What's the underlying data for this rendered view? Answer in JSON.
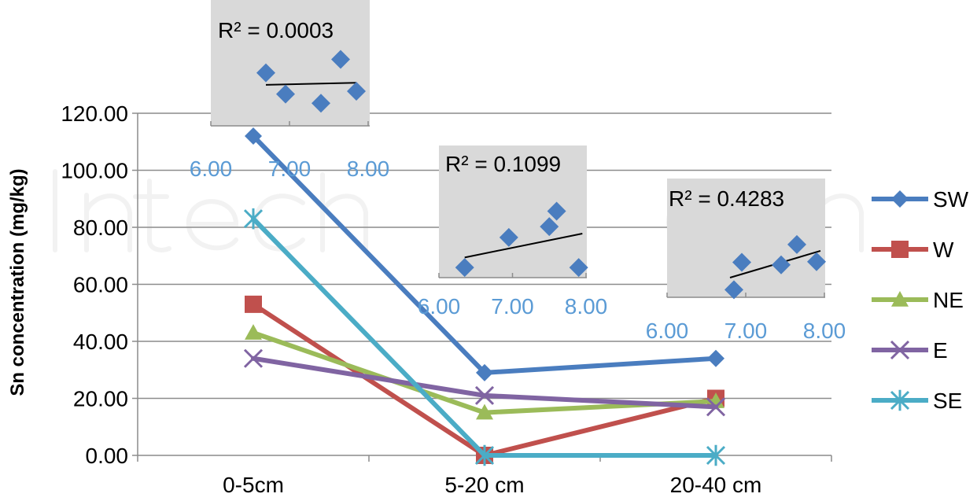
{
  "chart_data": {
    "type": "line",
    "ylabel": "Sn concentration (mg/kg)",
    "xlabel": "",
    "ylim": [
      0,
      120
    ],
    "yticks": [
      "0.00",
      "20.00",
      "40.00",
      "60.00",
      "80.00",
      "100.00",
      "120.00"
    ],
    "categories": [
      "0-5cm",
      "5-20 cm",
      "20-40 cm"
    ],
    "grid": true,
    "legend": "right",
    "series": [
      {
        "name": "SW",
        "color": "#4a7dbf",
        "marker": "diamond",
        "values": [
          112,
          29,
          34
        ]
      },
      {
        "name": "W",
        "color": "#c0504d",
        "marker": "square",
        "values": [
          53,
          0,
          20
        ]
      },
      {
        "name": "NE",
        "color": "#9bbb59",
        "marker": "triangle",
        "values": [
          43,
          15,
          19
        ]
      },
      {
        "name": "E",
        "color": "#8064a2",
        "marker": "x",
        "values": [
          34,
          21,
          17
        ]
      },
      {
        "name": "SE",
        "color": "#4bacc6",
        "marker": "star",
        "values": [
          83,
          0,
          0
        ]
      }
    ],
    "insets": [
      {
        "type": "scatter",
        "r2_label": "R² = 0.0003",
        "xticks": [
          "6.00",
          "7.00",
          "8.00"
        ],
        "xlim": [
          6,
          8
        ],
        "ylim": [
          0,
          10
        ],
        "points": [
          [
            6.7,
            6.6
          ],
          [
            6.95,
            3.6
          ],
          [
            7.4,
            2.3
          ],
          [
            7.65,
            8.5
          ],
          [
            7.85,
            4.0
          ]
        ],
        "trend": [
          [
            6.7,
            4.9
          ],
          [
            7.85,
            5.2
          ]
        ]
      },
      {
        "type": "scatter",
        "r2_label": "R² = 0.1099",
        "xticks": [
          "6.00",
          "7.00",
          "8.00"
        ],
        "xlim": [
          6,
          8
        ],
        "ylim": [
          0,
          10
        ],
        "points": [
          [
            6.35,
            0.5
          ],
          [
            6.95,
            4.4
          ],
          [
            7.5,
            5.8
          ],
          [
            7.6,
            7.8
          ],
          [
            7.9,
            0.5
          ]
        ],
        "trend": [
          [
            6.35,
            1.8
          ],
          [
            7.95,
            4.9
          ]
        ]
      },
      {
        "type": "scatter",
        "r2_label": "R² = 0.4283",
        "xticks": [
          "6.00",
          "7.00",
          "8.00"
        ],
        "xlim": [
          6,
          8
        ],
        "ylim": [
          0,
          10
        ],
        "points": [
          [
            6.85,
            0.2
          ],
          [
            6.95,
            4.5
          ],
          [
            7.45,
            4.1
          ],
          [
            7.65,
            7.3
          ],
          [
            7.9,
            4.6
          ]
        ],
        "trend": [
          [
            6.8,
            2.1
          ],
          [
            7.95,
            6.3
          ]
        ]
      }
    ]
  }
}
